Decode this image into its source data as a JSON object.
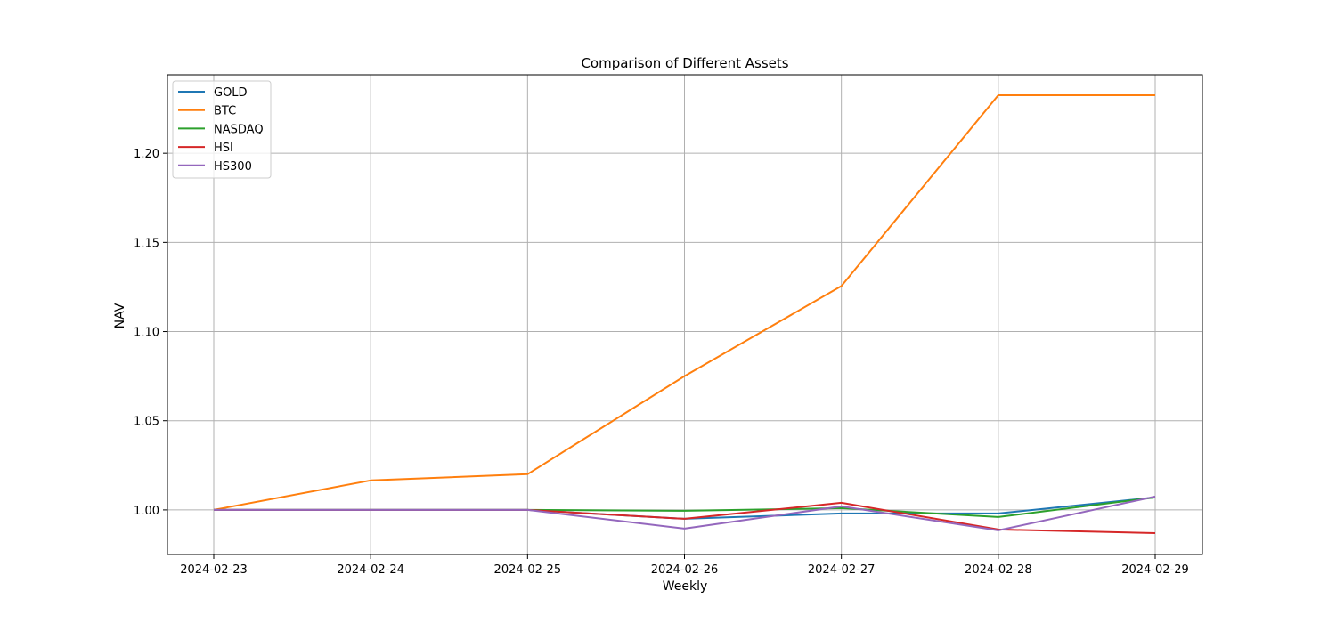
{
  "chart_data": {
    "type": "line",
    "title": "Comparison of Different Assets",
    "xlabel": "Weekly",
    "ylabel": "NAV",
    "categories": [
      "2024-02-23",
      "2024-02-24",
      "2024-02-25",
      "2024-02-26",
      "2024-02-27",
      "2024-02-28",
      "2024-02-29"
    ],
    "ylim": [
      0.975,
      1.244
    ],
    "yticks": [
      1.0,
      1.05,
      1.1,
      1.15,
      1.2
    ],
    "ytick_labels": [
      "1.00",
      "1.05",
      "1.10",
      "1.15",
      "1.20"
    ],
    "grid": true,
    "legend_position": "top-left",
    "series": [
      {
        "name": "GOLD",
        "color": "#1f77b4",
        "values": [
          1.0,
          1.0,
          1.0,
          0.995,
          0.998,
          0.998,
          1.007
        ]
      },
      {
        "name": "BTC",
        "color": "#ff7f0e",
        "values": [
          1.0,
          1.0165,
          1.02,
          1.075,
          1.1255,
          1.2325,
          1.2325
        ]
      },
      {
        "name": "NASDAQ",
        "color": "#2ca02c",
        "values": [
          1.0,
          1.0,
          1.0,
          0.9995,
          1.001,
          0.996,
          1.007
        ]
      },
      {
        "name": "HSI",
        "color": "#d62728",
        "values": [
          1.0,
          1.0,
          1.0,
          0.995,
          1.004,
          0.989,
          0.987
        ]
      },
      {
        "name": "HS300",
        "color": "#9467bd",
        "values": [
          1.0,
          1.0,
          1.0,
          0.9895,
          1.002,
          0.9885,
          1.0075
        ]
      }
    ]
  }
}
